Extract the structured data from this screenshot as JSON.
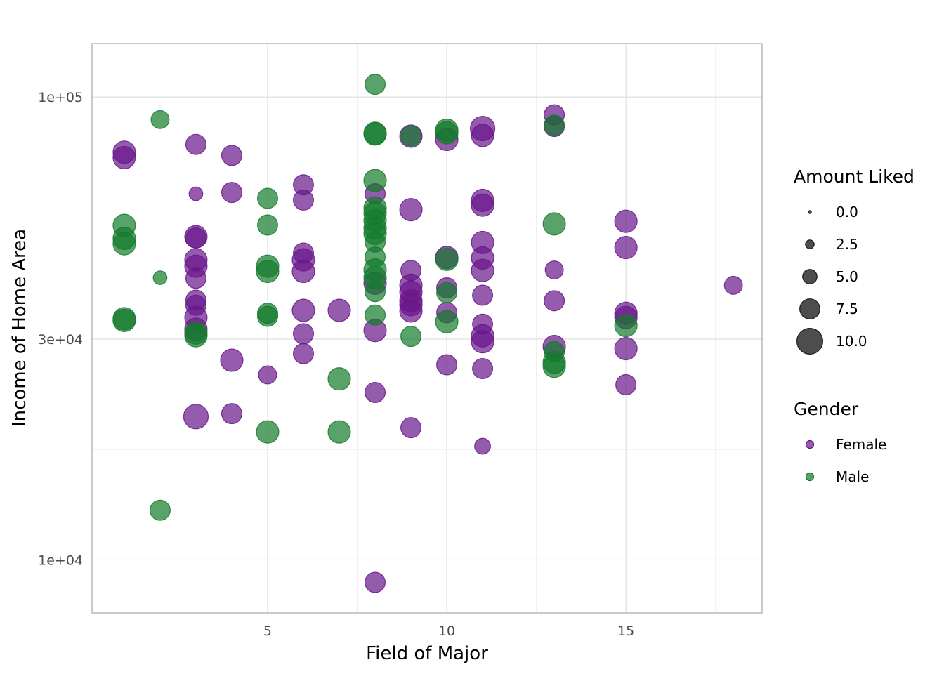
{
  "chart_data": {
    "type": "scatter",
    "title": "",
    "xlabel": "Field of Major",
    "ylabel": "Income of Home Area",
    "x_ticks": [
      5,
      10,
      15
    ],
    "x_tick_labels": [
      "5",
      "10",
      "15"
    ],
    "xlim": [
      0.1,
      18.8
    ],
    "y_scale": "log10",
    "y_ticks": [
      10000,
      30000,
      100000
    ],
    "y_tick_labels": [
      "1e+04",
      "3e+04",
      "1e+05"
    ],
    "ylim": [
      7680,
      130500
    ],
    "grid": true,
    "legend_position": "right",
    "colors": {
      "Female": "#68168a",
      "Male": "#137a2b"
    },
    "size_legend": {
      "title": "Amount Liked",
      "values": [
        0.0,
        2.5,
        5.0,
        7.5,
        10.0
      ],
      "labels": [
        "0.0",
        "2.5",
        "5.0",
        "7.5",
        "10.0"
      ]
    },
    "color_legend": {
      "title": "Gender",
      "labels": [
        "Female",
        "Male"
      ]
    },
    "series": [
      {
        "name": "Female",
        "points": [
          {
            "x": 1,
            "y": 76000,
            "size": 9
          },
          {
            "x": 1,
            "y": 74000,
            "size": 9
          },
          {
            "x": 3,
            "y": 79000,
            "size": 8
          },
          {
            "x": 3,
            "y": 61800,
            "size": 5
          },
          {
            "x": 3,
            "y": 49900,
            "size": 9
          },
          {
            "x": 3,
            "y": 49600,
            "size": 8
          },
          {
            "x": 3,
            "y": 44500,
            "size": 9
          },
          {
            "x": 3,
            "y": 43100,
            "size": 9
          },
          {
            "x": 3,
            "y": 40600,
            "size": 8
          },
          {
            "x": 3,
            "y": 36400,
            "size": 8
          },
          {
            "x": 3,
            "y": 35500,
            "size": 8
          },
          {
            "x": 3,
            "y": 33400,
            "size": 9
          },
          {
            "x": 3,
            "y": 31500,
            "size": 9
          },
          {
            "x": 3,
            "y": 20400,
            "size": 10
          },
          {
            "x": 4,
            "y": 74800,
            "size": 8
          },
          {
            "x": 4,
            "y": 62200,
            "size": 8
          },
          {
            "x": 4,
            "y": 27000,
            "size": 9
          },
          {
            "x": 4,
            "y": 20700,
            "size": 8
          },
          {
            "x": 5,
            "y": 25100,
            "size": 7
          },
          {
            "x": 6,
            "y": 64600,
            "size": 8
          },
          {
            "x": 6,
            "y": 59900,
            "size": 8
          },
          {
            "x": 6,
            "y": 46000,
            "size": 8
          },
          {
            "x": 6,
            "y": 44500,
            "size": 9
          },
          {
            "x": 6,
            "y": 42000,
            "size": 9
          },
          {
            "x": 6,
            "y": 34600,
            "size": 9
          },
          {
            "x": 6,
            "y": 30800,
            "size": 8
          },
          {
            "x": 6,
            "y": 27900,
            "size": 8
          },
          {
            "x": 7,
            "y": 34600,
            "size": 9
          },
          {
            "x": 8,
            "y": 61800,
            "size": 8
          },
          {
            "x": 8,
            "y": 39600,
            "size": 9
          },
          {
            "x": 8,
            "y": 31300,
            "size": 9
          },
          {
            "x": 8,
            "y": 23000,
            "size": 8
          },
          {
            "x": 8,
            "y": 8940,
            "size": 8
          },
          {
            "x": 9,
            "y": 57100,
            "size": 9
          },
          {
            "x": 9,
            "y": 82300,
            "size": 9
          },
          {
            "x": 9,
            "y": 42200,
            "size": 8
          },
          {
            "x": 9,
            "y": 39200,
            "size": 9
          },
          {
            "x": 9,
            "y": 37900,
            "size": 9
          },
          {
            "x": 9,
            "y": 36300,
            "size": 9
          },
          {
            "x": 9,
            "y": 35600,
            "size": 9
          },
          {
            "x": 9,
            "y": 34500,
            "size": 9
          },
          {
            "x": 9,
            "y": 19300,
            "size": 8
          },
          {
            "x": 10,
            "y": 81000,
            "size": 9
          },
          {
            "x": 10,
            "y": 45000,
            "size": 9
          },
          {
            "x": 10,
            "y": 38700,
            "size": 8
          },
          {
            "x": 10,
            "y": 34200,
            "size": 8
          },
          {
            "x": 10,
            "y": 26400,
            "size": 8
          },
          {
            "x": 11,
            "y": 85500,
            "size": 10
          },
          {
            "x": 11,
            "y": 82600,
            "size": 9
          },
          {
            "x": 11,
            "y": 59800,
            "size": 9
          },
          {
            "x": 11,
            "y": 58400,
            "size": 9
          },
          {
            "x": 11,
            "y": 48500,
            "size": 9
          },
          {
            "x": 11,
            "y": 44900,
            "size": 9
          },
          {
            "x": 11,
            "y": 42200,
            "size": 9
          },
          {
            "x": 11,
            "y": 37300,
            "size": 8
          },
          {
            "x": 11,
            "y": 32300,
            "size": 8
          },
          {
            "x": 11,
            "y": 30500,
            "size": 9
          },
          {
            "x": 11,
            "y": 29600,
            "size": 9
          },
          {
            "x": 11,
            "y": 25900,
            "size": 8
          },
          {
            "x": 11,
            "y": 17600,
            "size": 6
          },
          {
            "x": 13,
            "y": 91500,
            "size": 8
          },
          {
            "x": 13,
            "y": 86400,
            "size": 8
          },
          {
            "x": 13,
            "y": 42300,
            "size": 7
          },
          {
            "x": 13,
            "y": 36300,
            "size": 8
          },
          {
            "x": 13,
            "y": 28900,
            "size": 9
          },
          {
            "x": 15,
            "y": 53900,
            "size": 9
          },
          {
            "x": 15,
            "y": 47300,
            "size": 9
          },
          {
            "x": 15,
            "y": 34100,
            "size": 9
          },
          {
            "x": 15,
            "y": 33400,
            "size": 9
          },
          {
            "x": 15,
            "y": 28600,
            "size": 9
          },
          {
            "x": 15,
            "y": 23900,
            "size": 8
          },
          {
            "x": 18,
            "y": 39200,
            "size": 7
          }
        ]
      },
      {
        "name": "Male",
        "points": [
          {
            "x": 1,
            "y": 52800,
            "size": 9
          },
          {
            "x": 1,
            "y": 49500,
            "size": 9
          },
          {
            "x": 1,
            "y": 48200,
            "size": 9
          },
          {
            "x": 1,
            "y": 33200,
            "size": 9
          },
          {
            "x": 1,
            "y": 32900,
            "size": 9
          },
          {
            "x": 2,
            "y": 89400,
            "size": 7
          },
          {
            "x": 2,
            "y": 40700,
            "size": 5
          },
          {
            "x": 2,
            "y": 12800,
            "size": 8
          },
          {
            "x": 3,
            "y": 30900,
            "size": 9
          },
          {
            "x": 3,
            "y": 30500,
            "size": 9
          },
          {
            "x": 5,
            "y": 60400,
            "size": 8
          },
          {
            "x": 5,
            "y": 52900,
            "size": 8
          },
          {
            "x": 5,
            "y": 43100,
            "size": 9
          },
          {
            "x": 5,
            "y": 42000,
            "size": 9
          },
          {
            "x": 5,
            "y": 34100,
            "size": 8
          },
          {
            "x": 5,
            "y": 33600,
            "size": 8
          },
          {
            "x": 5,
            "y": 18900,
            "size": 9
          },
          {
            "x": 7,
            "y": 24600,
            "size": 9
          },
          {
            "x": 7,
            "y": 18900,
            "size": 9
          },
          {
            "x": 8,
            "y": 106500,
            "size": 8
          },
          {
            "x": 8,
            "y": 83500,
            "size": 9
          },
          {
            "x": 8,
            "y": 83200,
            "size": 9
          },
          {
            "x": 8,
            "y": 66000,
            "size": 9
          },
          {
            "x": 8,
            "y": 57600,
            "size": 9
          },
          {
            "x": 8,
            "y": 56100,
            "size": 9
          },
          {
            "x": 8,
            "y": 54100,
            "size": 9
          },
          {
            "x": 8,
            "y": 52100,
            "size": 9
          },
          {
            "x": 8,
            "y": 50700,
            "size": 9
          },
          {
            "x": 8,
            "y": 48600,
            "size": 8
          },
          {
            "x": 8,
            "y": 45100,
            "size": 8
          },
          {
            "x": 8,
            "y": 42300,
            "size": 9
          },
          {
            "x": 8,
            "y": 40700,
            "size": 9
          },
          {
            "x": 8,
            "y": 38000,
            "size": 8
          },
          {
            "x": 8,
            "y": 33800,
            "size": 8
          },
          {
            "x": 9,
            "y": 82400,
            "size": 8
          },
          {
            "x": 9,
            "y": 30400,
            "size": 8
          },
          {
            "x": 10,
            "y": 84800,
            "size": 9
          },
          {
            "x": 10,
            "y": 83700,
            "size": 9
          },
          {
            "x": 10,
            "y": 44600,
            "size": 9
          },
          {
            "x": 10,
            "y": 37800,
            "size": 8
          },
          {
            "x": 10,
            "y": 32700,
            "size": 9
          },
          {
            "x": 13,
            "y": 86900,
            "size": 8
          },
          {
            "x": 13,
            "y": 53200,
            "size": 9
          },
          {
            "x": 13,
            "y": 28200,
            "size": 8
          },
          {
            "x": 13,
            "y": 26700,
            "size": 9
          },
          {
            "x": 13,
            "y": 26200,
            "size": 9
          },
          {
            "x": 15,
            "y": 32100,
            "size": 9
          }
        ]
      }
    ]
  }
}
